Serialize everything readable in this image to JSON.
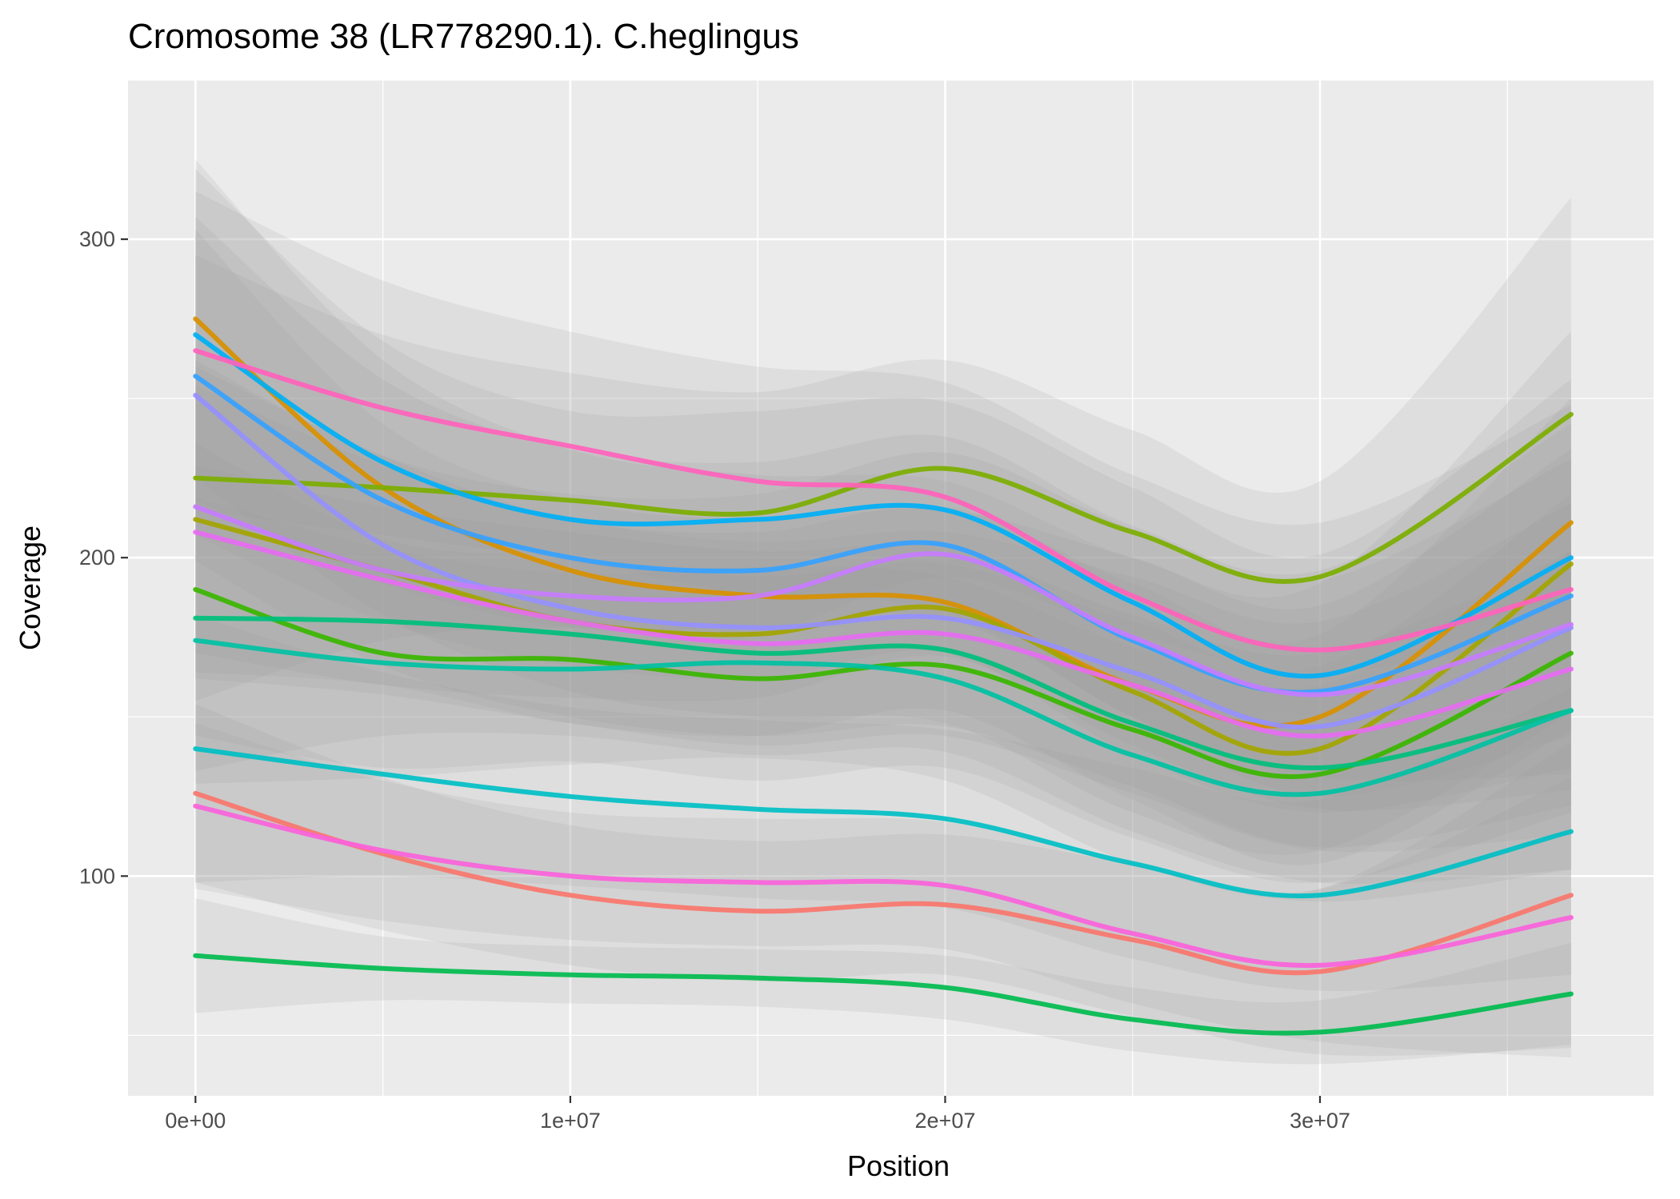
{
  "chart_data": {
    "type": "line",
    "title": "Cromosome 38 (LR778290.1). C.heglingus",
    "xlabel": "Position",
    "ylabel": "Coverage",
    "xlim": [
      -1800000,
      38900000
    ],
    "ylim": [
      31000,
      350000
    ],
    "ylim_note": "",
    "x_ticks": [
      {
        "value": 0,
        "label": "0e+00"
      },
      {
        "value": 10000000,
        "label": "1e+07"
      },
      {
        "value": 20000000,
        "label": "2e+07"
      },
      {
        "value": 30000000,
        "label": "3e+07"
      }
    ],
    "y_ticks": [
      {
        "value": 100,
        "label": "100"
      },
      {
        "value": 200,
        "label": "200"
      },
      {
        "value": 300,
        "label": "300"
      }
    ],
    "grid": true,
    "legend": "none",
    "x": [
      0,
      5000000,
      10000000,
      15000000,
      20000000,
      25000000,
      30000000,
      36700000
    ],
    "series": [
      {
        "color": "#F8766D",
        "values": [
          126,
          107,
          94,
          89,
          91,
          80,
          70,
          94
        ],
        "band": [
          28,
          24,
          22,
          22,
          22,
          24,
          26,
          48
        ]
      },
      {
        "color": "#D89000",
        "values": [
          275,
          222,
          196,
          188,
          186,
          160,
          150,
          211
        ],
        "band": [
          50,
          40,
          38,
          38,
          38,
          40,
          42,
          60
        ]
      },
      {
        "color": "#A3A500",
        "values": [
          212,
          196,
          180,
          176,
          184,
          158,
          140,
          198
        ],
        "band": [
          48,
          36,
          32,
          32,
          32,
          34,
          36,
          52
        ]
      },
      {
        "color": "#7CAE00",
        "values": [
          225,
          222,
          218,
          214,
          228,
          208,
          194,
          245
        ],
        "band": [
          70,
          48,
          40,
          38,
          34,
          32,
          30,
          68
        ]
      },
      {
        "color": "#39B600",
        "values": [
          190,
          170,
          168,
          162,
          166,
          146,
          132,
          170
        ],
        "band": [
          46,
          36,
          32,
          32,
          32,
          34,
          34,
          50
        ]
      },
      {
        "color": "#00BB4E",
        "values": [
          75,
          71,
          69,
          68,
          65,
          55,
          51,
          63
        ],
        "band": [
          18,
          10,
          9,
          9,
          10,
          10,
          10,
          16
        ]
      },
      {
        "color": "#00BF7D",
        "values": [
          181,
          180,
          176,
          170,
          171,
          148,
          134,
          152
        ],
        "band": [
          48,
          36,
          32,
          32,
          32,
          34,
          36,
          50
        ]
      },
      {
        "color": "#00C1A3",
        "values": [
          174,
          167,
          165,
          167,
          162,
          138,
          126,
          152
        ],
        "band": [
          45,
          36,
          30,
          30,
          32,
          34,
          34,
          50
        ]
      },
      {
        "color": "#00BFC4",
        "values": [
          140,
          132,
          125,
          121,
          118,
          104,
          94,
          114
        ],
        "band": [
          42,
          32,
          28,
          28,
          28,
          30,
          30,
          45
        ]
      },
      {
        "color": "#00B0F6",
        "values": [
          270,
          230,
          212,
          212,
          215,
          186,
          163,
          200
        ],
        "band": [
          52,
          38,
          34,
          34,
          34,
          36,
          38,
          56
        ]
      },
      {
        "color": "#35A2FF",
        "values": [
          257,
          218,
          200,
          196,
          204,
          174,
          158,
          188
        ],
        "band": [
          50,
          38,
          34,
          34,
          34,
          36,
          38,
          54
        ]
      },
      {
        "color": "#9590FF",
        "values": [
          251,
          204,
          184,
          178,
          181,
          164,
          147,
          178
        ],
        "band": [
          52,
          38,
          34,
          34,
          34,
          36,
          38,
          56
        ]
      },
      {
        "color": "#C77CFF",
        "values": [
          216,
          196,
          188,
          188,
          201,
          175,
          157,
          179
        ],
        "band": [
          46,
          36,
          32,
          32,
          32,
          34,
          36,
          52
        ]
      },
      {
        "color": "#E76BF3",
        "values": [
          208,
          193,
          180,
          173,
          176,
          160,
          144,
          165
        ],
        "band": [
          46,
          36,
          32,
          32,
          32,
          34,
          36,
          52
        ]
      },
      {
        "color": "#FA62DB",
        "values": [
          122,
          108,
          100,
          98,
          97,
          82,
          72,
          87
        ],
        "band": [
          26,
          22,
          20,
          20,
          20,
          22,
          24,
          44
        ]
      },
      {
        "color": "#FF62BC",
        "values": [
          265,
          247,
          235,
          224,
          219,
          188,
          171,
          190
        ],
        "band": [
          50,
          40,
          36,
          36,
          36,
          38,
          40,
          58
        ]
      }
    ]
  }
}
